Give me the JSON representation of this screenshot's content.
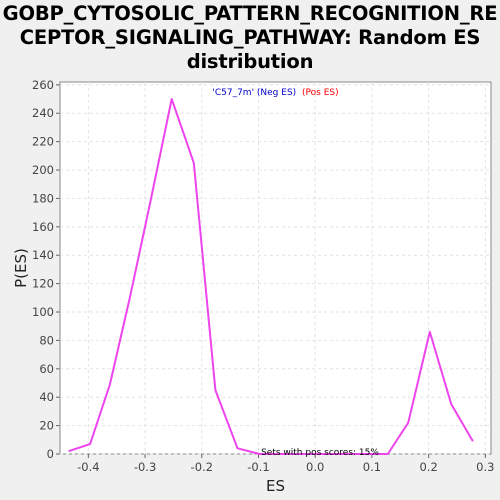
{
  "chart_data": {
    "type": "line",
    "title_lines": [
      "GOBP_CYTOSOLIC_PATTERN_RECOGNITION_RE",
      "CEPTOR_SIGNALING_PATHWAY: Random ES",
      "distribution"
    ],
    "xlabel": "ES",
    "ylabel": "P(ES)",
    "xlim": [
      -0.45,
      0.31
    ],
    "ylim": [
      0,
      262
    ],
    "x_ticks": [
      -0.4,
      -0.3,
      -0.2,
      -0.1,
      0.0,
      0.1,
      0.2,
      0.3
    ],
    "x_tick_labels": [
      "-0.4",
      "-0.3",
      "-0.2",
      "-0.1",
      "0.0",
      "0.1",
      "0.2",
      "0.3"
    ],
    "y_ticks": [
      0,
      20,
      40,
      60,
      80,
      100,
      120,
      140,
      160,
      180,
      200,
      220,
      240,
      260
    ],
    "y_tick_labels": [
      "0",
      "20",
      "40",
      "60",
      "80",
      "100",
      "120",
      "140",
      "160",
      "180",
      "200",
      "220",
      "240",
      "260"
    ],
    "grid": true,
    "legend": {
      "neg_label": "'C57_7m' (Neg ES)",
      "pos_label": "(Pos ES)",
      "neg_color": "#0000cc",
      "pos_color": "#ff0000",
      "placement": "top-center"
    },
    "annotation": "Sets with pos scores: 15%",
    "series": [
      {
        "color": "#ee44ee",
        "x": [
          -0.435,
          -0.397,
          -0.362,
          -0.327,
          -0.292,
          -0.253,
          -0.214,
          -0.176,
          -0.137,
          -0.098,
          -0.058,
          -0.019,
          0.02,
          0.059,
          0.098,
          0.128,
          0.164,
          0.202,
          0.24,
          0.278
        ],
        "y": [
          2,
          7,
          49,
          110,
          175,
          250,
          205,
          45,
          4,
          0,
          0,
          0,
          0,
          0,
          0,
          0,
          22,
          86,
          35,
          9
        ]
      }
    ]
  }
}
